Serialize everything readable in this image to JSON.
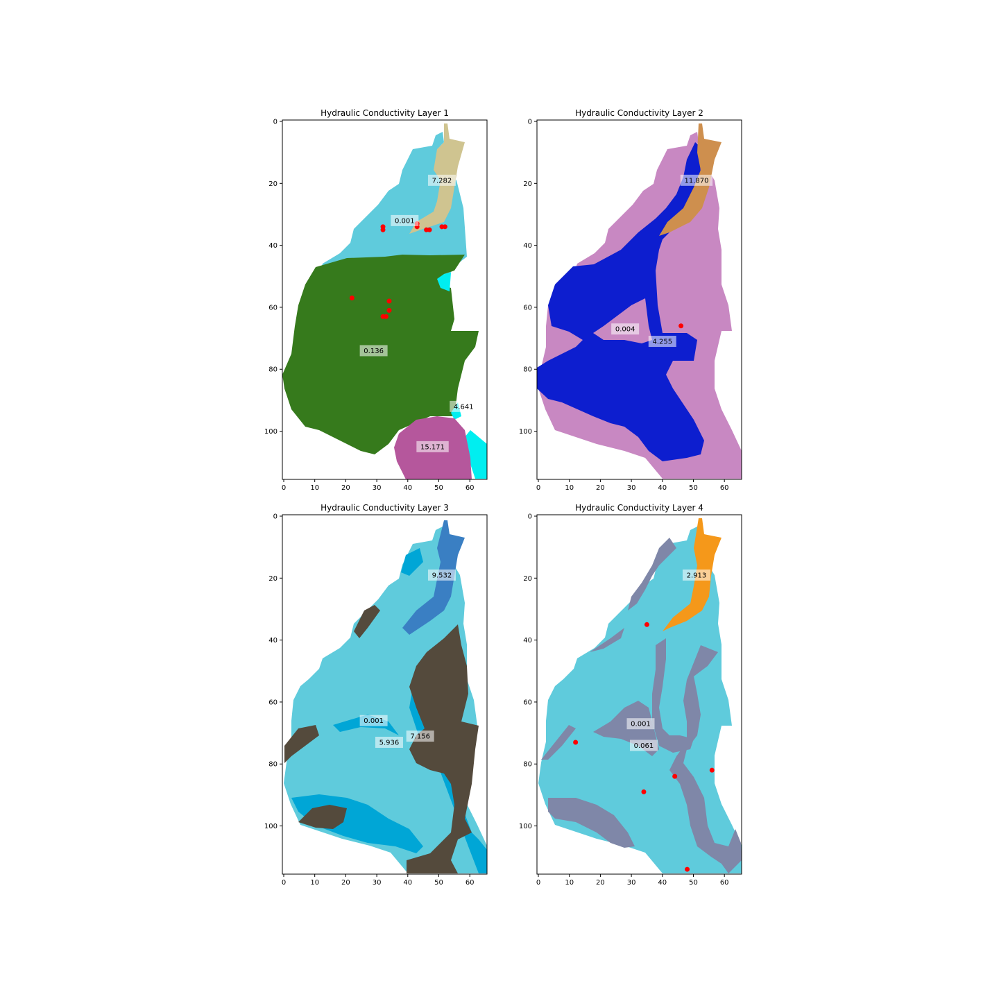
{
  "chart_data": [
    {
      "type": "heatmap",
      "title": "Hydraulic Conductivity Layer 1",
      "xlim": [
        0,
        66
      ],
      "ylim": [
        116,
        0
      ],
      "x_ticks": [
        "0",
        "10",
        "20",
        "30",
        "40",
        "50",
        "60"
      ],
      "y_ticks": [
        "0",
        "20",
        "40",
        "60",
        "80",
        "100"
      ],
      "zones": [
        {
          "value": "7.282",
          "color": "#cfc490",
          "label_at": [
            51,
            19
          ]
        },
        {
          "value": "0.001",
          "color": "#5fcbdc",
          "label_at": [
            39,
            32
          ]
        },
        {
          "value": "0.136",
          "color": "#367a1c",
          "label_at": [
            29,
            74
          ]
        },
        {
          "value": "4.641",
          "color": "#00eef0",
          "label_at": [
            58,
            92
          ]
        },
        {
          "value": "15.171",
          "color": "#b5579c",
          "label_at": [
            48,
            105
          ]
        }
      ],
      "points": [
        [
          32,
          34
        ],
        [
          32,
          35
        ],
        [
          43,
          33
        ],
        [
          43,
          34
        ],
        [
          46,
          35
        ],
        [
          47,
          35
        ],
        [
          51,
          34
        ],
        [
          52,
          34
        ],
        [
          22,
          57
        ],
        [
          34,
          58
        ],
        [
          34,
          61
        ],
        [
          32,
          63
        ],
        [
          33,
          63
        ]
      ]
    },
    {
      "type": "heatmap",
      "title": "Hydraulic Conductivity Layer 2",
      "xlim": [
        0,
        66
      ],
      "ylim": [
        116,
        0
      ],
      "x_ticks": [
        "0",
        "10",
        "20",
        "30",
        "40",
        "50",
        "60"
      ],
      "y_ticks": [
        "0",
        "20",
        "40",
        "60",
        "80",
        "100"
      ],
      "zones": [
        {
          "value": "11.870",
          "color": "#ce8f4e",
          "label_at": [
            51,
            19
          ]
        },
        {
          "value": "0.004",
          "color": "#c888c2",
          "label_at": [
            28,
            67
          ]
        },
        {
          "value": "4.255",
          "color": "#0d1ecf",
          "label_at": [
            40,
            71
          ]
        }
      ],
      "points": [
        [
          46,
          66
        ]
      ]
    },
    {
      "type": "heatmap",
      "title": "Hydraulic Conductivity Layer 3",
      "xlim": [
        0,
        66
      ],
      "ylim": [
        116,
        0
      ],
      "x_ticks": [
        "0",
        "10",
        "20",
        "30",
        "40",
        "50",
        "60"
      ],
      "y_ticks": [
        "0",
        "20",
        "40",
        "60",
        "80",
        "100"
      ],
      "zones": [
        {
          "value": "9.532",
          "color": "#3a7fc3",
          "label_at": [
            51,
            19
          ]
        },
        {
          "value": "0.001",
          "color": "#00a6d6",
          "label_at": [
            29,
            66
          ]
        },
        {
          "value": "7.156",
          "color": "#544a3c",
          "label_at": [
            44,
            71
          ]
        },
        {
          "value": "5.936",
          "color": "#5fcbdc",
          "label_at": [
            34,
            73
          ]
        }
      ],
      "points": []
    },
    {
      "type": "heatmap",
      "title": "Hydraulic Conductivity Layer 4",
      "xlim": [
        0,
        66
      ],
      "ylim": [
        116,
        0
      ],
      "x_ticks": [
        "0",
        "10",
        "20",
        "30",
        "40",
        "50",
        "60"
      ],
      "y_ticks": [
        "0",
        "20",
        "40",
        "60",
        "80",
        "100"
      ],
      "zones": [
        {
          "value": "2.913",
          "color": "#f5981a",
          "label_at": [
            51,
            19
          ]
        },
        {
          "value": "0.001",
          "color": "#7f87a8",
          "label_at": [
            33,
            67
          ]
        },
        {
          "value": "0.061",
          "color": "#5fcbdc",
          "label_at": [
            34,
            74
          ]
        }
      ],
      "points": [
        [
          35,
          35
        ],
        [
          12,
          73
        ],
        [
          44,
          84
        ],
        [
          56,
          82
        ],
        [
          34,
          89
        ],
        [
          48,
          114
        ]
      ]
    }
  ]
}
